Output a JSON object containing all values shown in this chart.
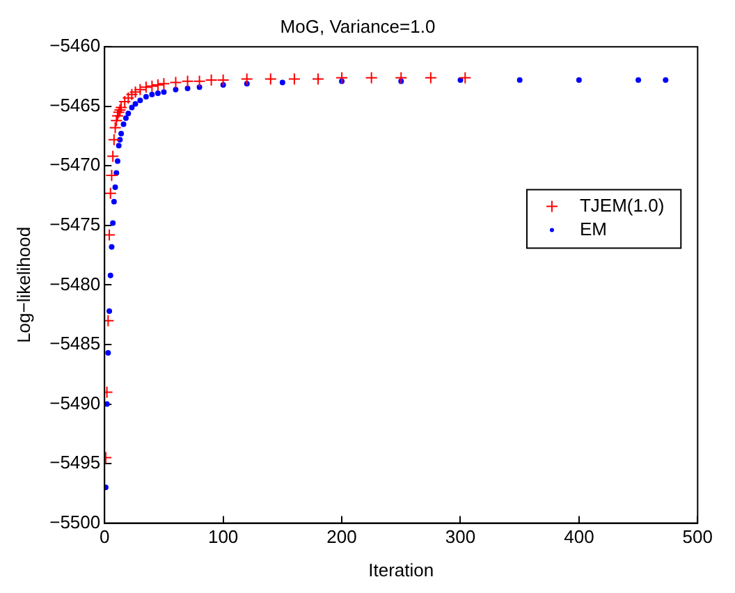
{
  "chart_data": {
    "type": "scatter",
    "title": "MoG, Variance=1.0",
    "xlabel": "Iteration",
    "ylabel": "Log−likelihood",
    "xlim": [
      0,
      500
    ],
    "xticks": [
      0,
      100,
      200,
      300,
      400,
      500
    ],
    "ylim": [
      -5500,
      -5460
    ],
    "yticks": [
      -5500,
      -5495,
      -5490,
      -5485,
      -5480,
      -5475,
      -5470,
      -5465,
      -5460
    ],
    "grid": false,
    "legend": "right",
    "series": [
      {
        "name": "TJEM(1.0)",
        "color": "#ff0000",
        "marker": "cross",
        "x": [
          1,
          2,
          3,
          4,
          5,
          6,
          7,
          8,
          9,
          10,
          11,
          12,
          13,
          14,
          17,
          20,
          23,
          26,
          30,
          35,
          40,
          45,
          50,
          60,
          70,
          80,
          90,
          100,
          120,
          140,
          160,
          180,
          200,
          225,
          250,
          275,
          304
        ],
        "values": [
          -5494.5,
          -5489,
          -5483,
          -5475.8,
          -5472.3,
          -5470.8,
          -5469.2,
          -5467.8,
          -5466.8,
          -5466.2,
          -5465.8,
          -5465.5,
          -5465.3,
          -5465.1,
          -5464.6,
          -5464.3,
          -5464.0,
          -5463.8,
          -5463.6,
          -5463.4,
          -5463.3,
          -5463.2,
          -5463.1,
          -5463.0,
          -5462.9,
          -5462.9,
          -5462.8,
          -5462.8,
          -5462.7,
          -5462.7,
          -5462.7,
          -5462.7,
          -5462.6,
          -5462.6,
          -5462.6,
          -5462.6,
          -5462.6
        ]
      },
      {
        "name": "EM",
        "color": "#0000ff",
        "marker": "circle",
        "x": [
          1,
          2,
          3,
          4,
          5,
          6,
          7,
          8,
          9,
          10,
          11,
          12,
          13,
          14,
          16,
          18,
          20,
          23,
          26,
          30,
          35,
          40,
          45,
          50,
          60,
          70,
          80,
          100,
          120,
          150,
          200,
          250,
          300,
          350,
          400,
          450,
          473
        ],
        "values": [
          -5497,
          -5490,
          -5485.7,
          -5482.2,
          -5479.2,
          -5476.8,
          -5474.8,
          -5473,
          -5471.8,
          -5470.6,
          -5469.6,
          -5468.3,
          -5467.8,
          -5467.3,
          -5466.5,
          -5466.0,
          -5465.6,
          -5465.1,
          -5464.8,
          -5464.5,
          -5464.2,
          -5464.0,
          -5463.9,
          -5463.8,
          -5463.6,
          -5463.5,
          -5463.4,
          -5463.2,
          -5463.1,
          -5463.0,
          -5462.9,
          -5462.9,
          -5462.8,
          -5462.8,
          -5462.8,
          -5462.8,
          -5462.8
        ]
      }
    ]
  }
}
